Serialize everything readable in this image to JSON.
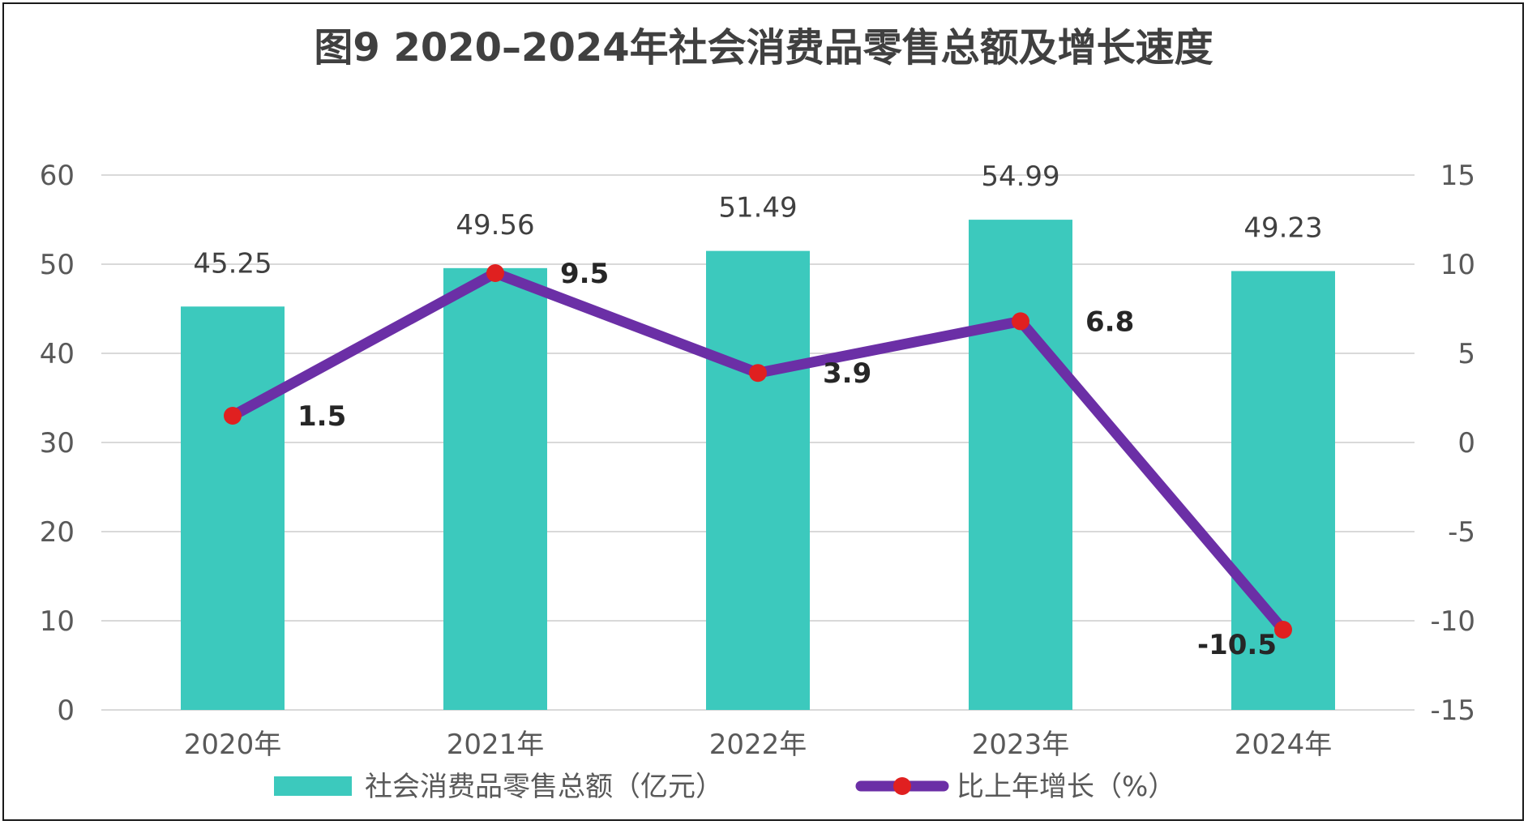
{
  "chart_data": {
    "type": "bar+line",
    "title": "图9  2020–2024年社会消费品零售总额及增长速度",
    "categories": [
      "2020年",
      "2021年",
      "2022年",
      "2023年",
      "2024年"
    ],
    "series": [
      {
        "name": "社会消费品零售总额（亿元）",
        "type": "bar",
        "axis": "left",
        "color": "#3cc9bd",
        "values": [
          45.25,
          49.56,
          51.49,
          54.99,
          49.23
        ],
        "labels": [
          "45.25",
          "49.56",
          "51.49",
          "54.99",
          "49.23"
        ]
      },
      {
        "name": "比上年增长（%）",
        "type": "line",
        "axis": "right",
        "color": "#6b2fa6",
        "marker_color": "#e02020",
        "values": [
          1.5,
          9.5,
          3.9,
          6.8,
          -10.5
        ],
        "labels": [
          "1.5",
          "9.5",
          "3.9",
          "6.8",
          "-10.5"
        ]
      }
    ],
    "y_left": {
      "ylim": [
        0,
        60
      ],
      "ticks": [
        "0",
        "10",
        "20",
        "30",
        "40",
        "50",
        "60"
      ]
    },
    "y_right": {
      "ylim": [
        -15,
        15
      ],
      "ticks": [
        "-15",
        "-10",
        "-5",
        "0",
        "5",
        "10",
        "15"
      ]
    },
    "grid": true,
    "legend_position": "bottom"
  }
}
